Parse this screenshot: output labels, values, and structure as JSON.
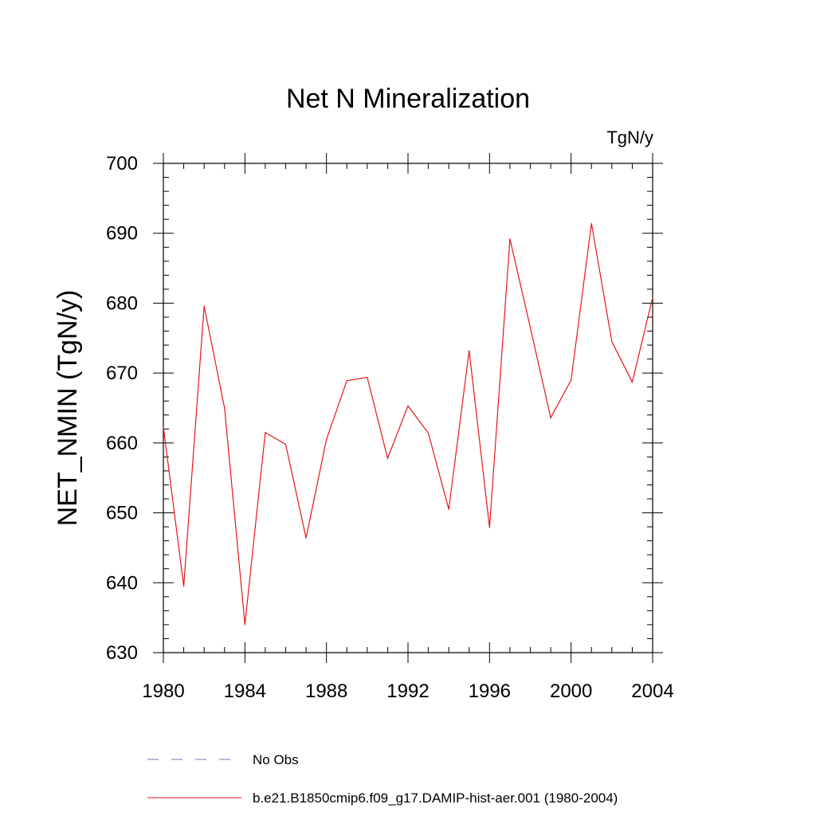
{
  "chart_data": {
    "type": "line",
    "title": "Net N Mineralization",
    "units_label": "TgN/y",
    "ylabel": "NET_NMIN  (TgN/y)",
    "xlabel": "",
    "xlim": [
      1980,
      2004
    ],
    "ylim": [
      630,
      700
    ],
    "x_ticks": [
      "1980",
      "1984",
      "1988",
      "1992",
      "1996",
      "2000",
      "2004"
    ],
    "y_ticks": [
      "630",
      "640",
      "650",
      "660",
      "670",
      "680",
      "690",
      "700"
    ],
    "grid": false,
    "legend_position": "bottom",
    "series": [
      {
        "name": "No Obs",
        "color": "#7f6fbf",
        "style": "dashed",
        "x": [],
        "values": []
      },
      {
        "name": "b.e21.B1850cmip6.f09_g17.DAMIP-hist-aer.001 (1980-2004)",
        "color": "#e8141b",
        "style": "solid",
        "x": [
          1980,
          1981,
          1982,
          1983,
          1984,
          1985,
          1986,
          1987,
          1988,
          1989,
          1990,
          1991,
          1992,
          1993,
          1994,
          1995,
          1996,
          1997,
          1998,
          1999,
          2000,
          2001,
          2002,
          2003,
          2004
        ],
        "values": [
          662.3,
          639.5,
          679.6,
          665.0,
          634.0,
          661.5,
          659.8,
          646.4,
          660.5,
          668.9,
          669.4,
          657.8,
          665.3,
          661.4,
          650.5,
          673.2,
          647.9,
          689.2,
          676.5,
          663.6,
          669.0,
          691.4,
          674.5,
          668.7,
          680.8
        ]
      }
    ]
  }
}
